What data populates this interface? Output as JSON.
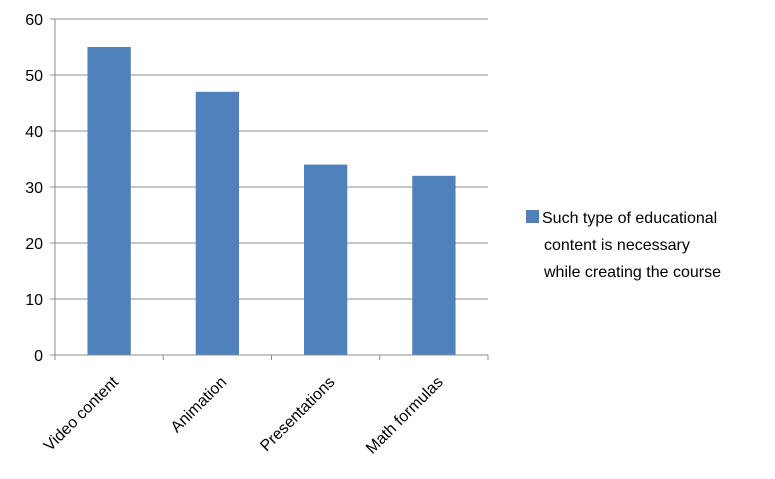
{
  "chart_data": {
    "type": "bar",
    "title": "",
    "xlabel": "",
    "ylabel": "",
    "categories": [
      "Video content",
      "Animation",
      "Presentations",
      "Math formulas"
    ],
    "series": [
      {
        "name": "Such type of educational content is necessary while creating the course",
        "values": [
          55,
          47,
          34,
          32
        ],
        "color": "#4f81bd"
      }
    ],
    "ylim": [
      0,
      60
    ],
    "yticks": [
      "0",
      "10",
      "20",
      "30",
      "40",
      "50",
      "60"
    ],
    "grid": true,
    "legend_position": "right",
    "legend_lines": [
      "Such type of educational",
      "content is necessary",
      "while creating the course"
    ]
  }
}
